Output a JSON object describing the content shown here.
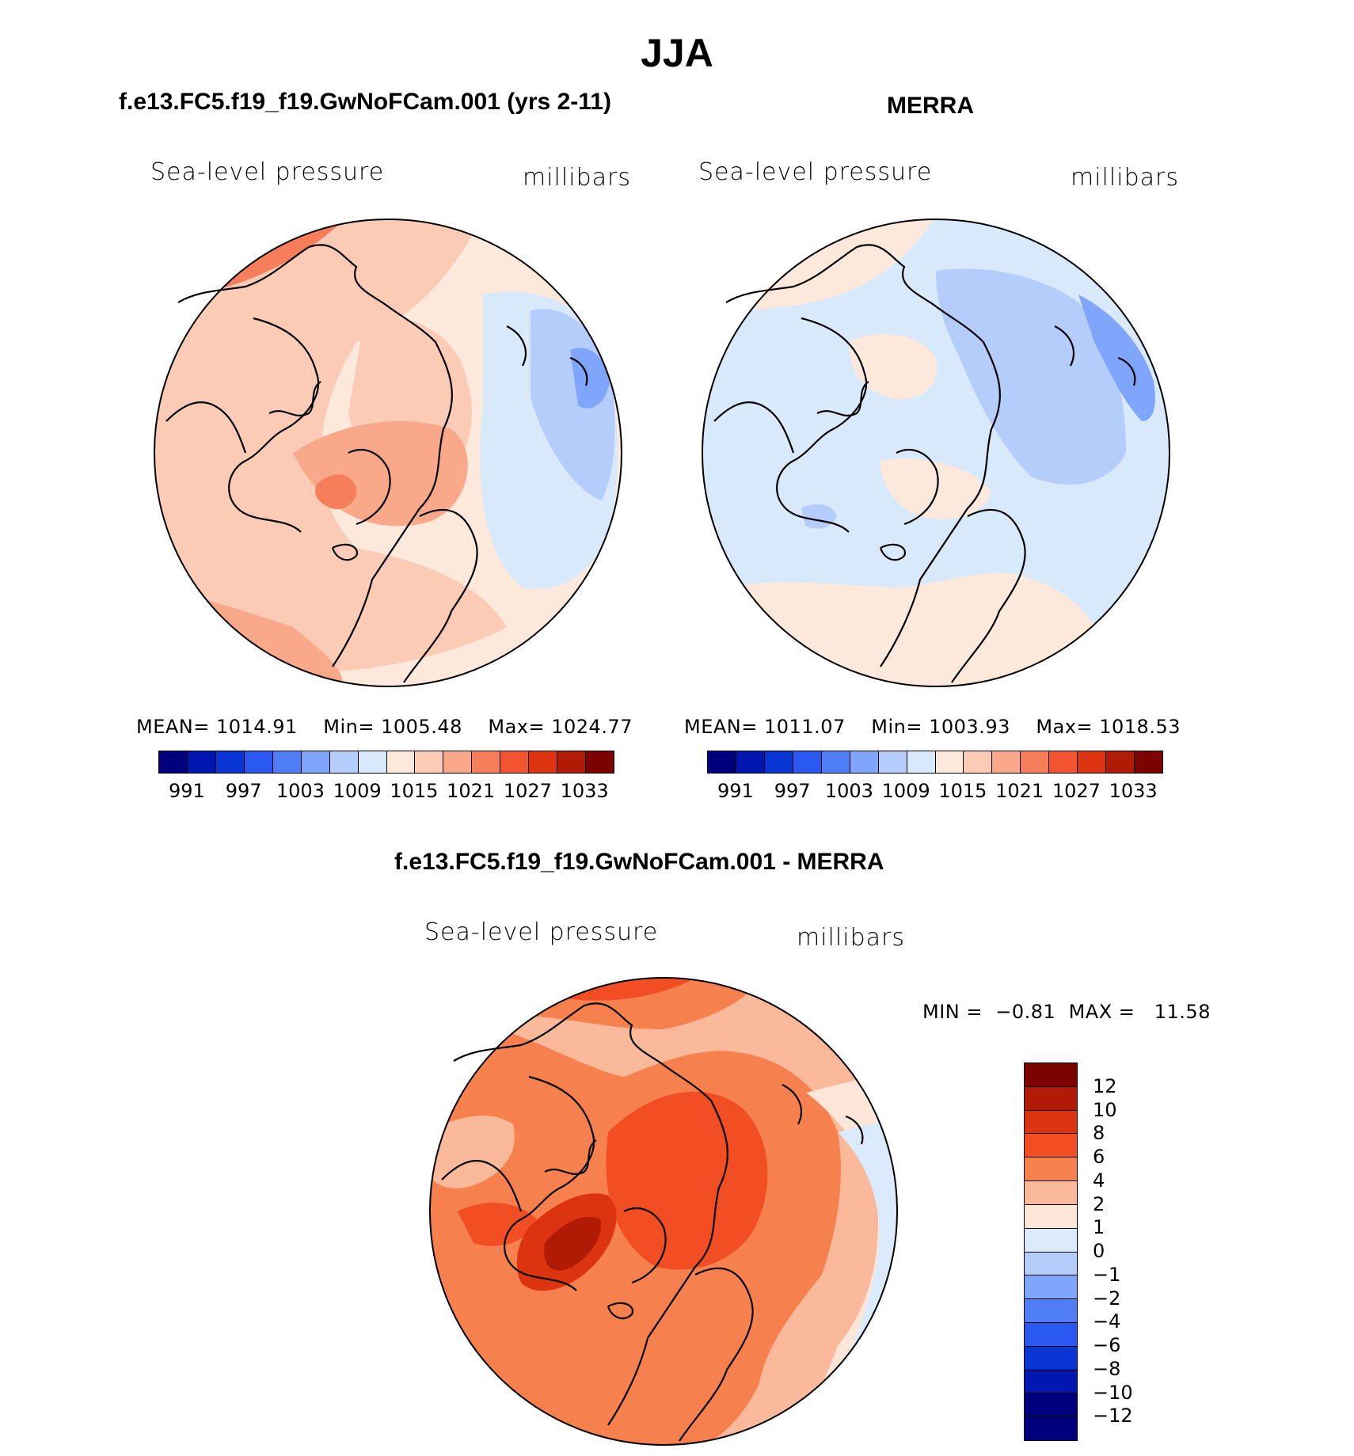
{
  "header": {
    "title": "JJA"
  },
  "colors": {
    "abs_scale": [
      "#00007f",
      "#0016b0",
      "#0a35d5",
      "#2a58f0",
      "#4f7ef6",
      "#7fa6fb",
      "#b5cdfb",
      "#d9e9fc",
      "#fde9dc",
      "#fbcbb6",
      "#f9a88a",
      "#f77e5a",
      "#f25430",
      "#dc3411",
      "#b01b05",
      "#7c0300"
    ],
    "diff_scale": [
      "#7c0300",
      "#b01b05",
      "#dc3411",
      "#f24e24",
      "#f6814f",
      "#fab99a",
      "#fde6d8",
      "#dbeafd",
      "#b5cdfb",
      "#7fa6fb",
      "#4f7ef6",
      "#2a58f0",
      "#0a35d5",
      "#0016b0",
      "#00007f"
    ]
  },
  "chart_data": [
    {
      "type": "polar-contour-map",
      "title": "f.e13.FC5.f19_f19.GwNoFCam.001 (yrs 2-11)",
      "variable": "Sea-level pressure",
      "units": "millibars",
      "mean_label": "MEAN=",
      "mean": "1014.91",
      "min_label": "Min=",
      "min": "1005.48",
      "max_label": "Max=",
      "max": "1024.77",
      "colorbar_ticks": [
        "991",
        "997",
        "1003",
        "1009",
        "1015",
        "1021",
        "1027",
        "1033"
      ]
    },
    {
      "type": "polar-contour-map",
      "title": "MERRA",
      "variable": "Sea-level pressure",
      "units": "millibars",
      "mean_label": "MEAN=",
      "mean": "1011.07",
      "min_label": "Min=",
      "min": "1003.93",
      "max_label": "Max=",
      "max": "1018.53",
      "colorbar_ticks": [
        "991",
        "997",
        "1003",
        "1009",
        "1015",
        "1021",
        "1027",
        "1033"
      ]
    },
    {
      "type": "polar-contour-map",
      "title": "f.e13.FC5.f19_f19.GwNoFCam.001 - MERRA",
      "variable": "Sea-level pressure",
      "units": "millibars",
      "min_label": "MIN =",
      "min": "−0.81",
      "max_label": "MAX =",
      "max": "11.58",
      "colorbar_levels": [
        "12",
        "10",
        "8",
        "6",
        "4",
        "2",
        "1",
        "0",
        "−1",
        "−2",
        "−4",
        "−6",
        "−8",
        "−10",
        "−12"
      ]
    }
  ]
}
